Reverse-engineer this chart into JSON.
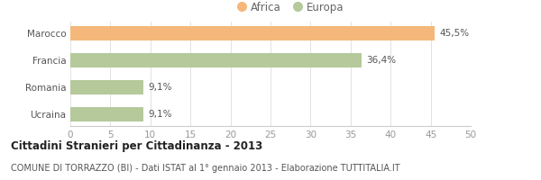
{
  "categories": [
    "Marocco",
    "Francia",
    "Romania",
    "Ucraina"
  ],
  "values": [
    45.5,
    36.4,
    9.1,
    9.1
  ],
  "labels": [
    "45,5%",
    "36,4%",
    "9,1%",
    "9,1%"
  ],
  "colors": [
    "#f5b87a",
    "#b5c99a",
    "#b5c99a",
    "#b5c99a"
  ],
  "legend": [
    {
      "label": "Africa",
      "color": "#f5b87a"
    },
    {
      "label": "Europa",
      "color": "#b5c99a"
    }
  ],
  "xlim": [
    0,
    50
  ],
  "xticks": [
    0,
    5,
    10,
    15,
    20,
    25,
    30,
    35,
    40,
    45,
    50
  ],
  "title": "Cittadini Stranieri per Cittadinanza - 2013",
  "subtitle": "COMUNE DI TORRAZZO (BI) - Dati ISTAT al 1° gennaio 2013 - Elaborazione TUTTITALIA.IT",
  "background_color": "#ffffff",
  "bar_height": 0.52,
  "title_fontsize": 8.5,
  "subtitle_fontsize": 7.0,
  "tick_fontsize": 7.5,
  "label_fontsize": 7.5,
  "legend_fontsize": 8.5
}
